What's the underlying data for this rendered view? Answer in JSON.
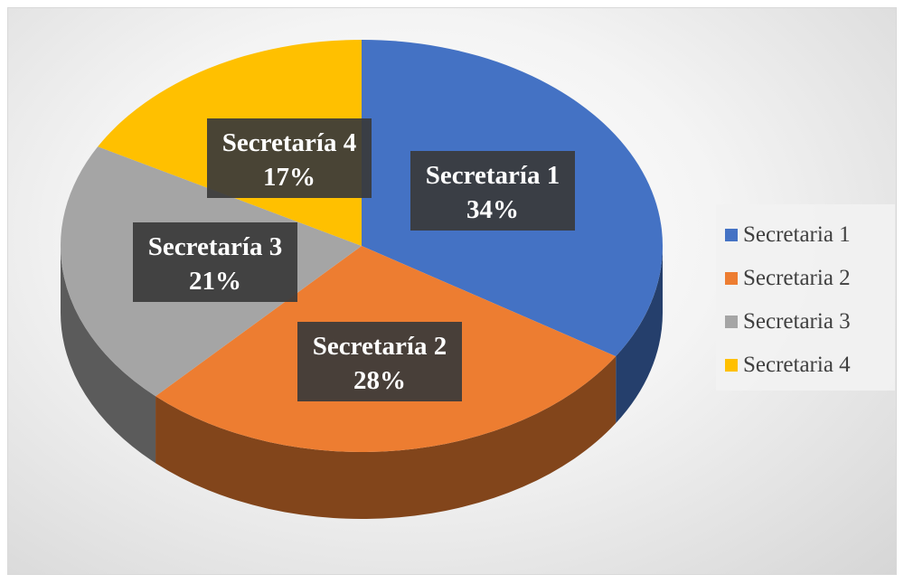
{
  "chart_data": {
    "type": "pie",
    "title": "",
    "categories": [
      "Secretaría 1",
      "Secretaría 2",
      "Secretaría 3",
      "Secretaría 4"
    ],
    "values": [
      34,
      28,
      21,
      17
    ],
    "data_labels": [
      {
        "name": "Secretaría 1",
        "percent": "34%"
      },
      {
        "name": "Secretaría 2",
        "percent": "28%"
      },
      {
        "name": "Secretaría 3",
        "percent": "21%"
      },
      {
        "name": "Secretaría 4",
        "percent": "17%"
      }
    ],
    "colors": [
      "#4472C4",
      "#ED7D31",
      "#A5A5A5",
      "#FFC000"
    ],
    "legend": {
      "placement": "right",
      "entries": [
        "Secretaria 1",
        "Secretaria 2",
        "Secretaria 3",
        "Secretaria 4"
      ]
    },
    "style": "3d"
  }
}
